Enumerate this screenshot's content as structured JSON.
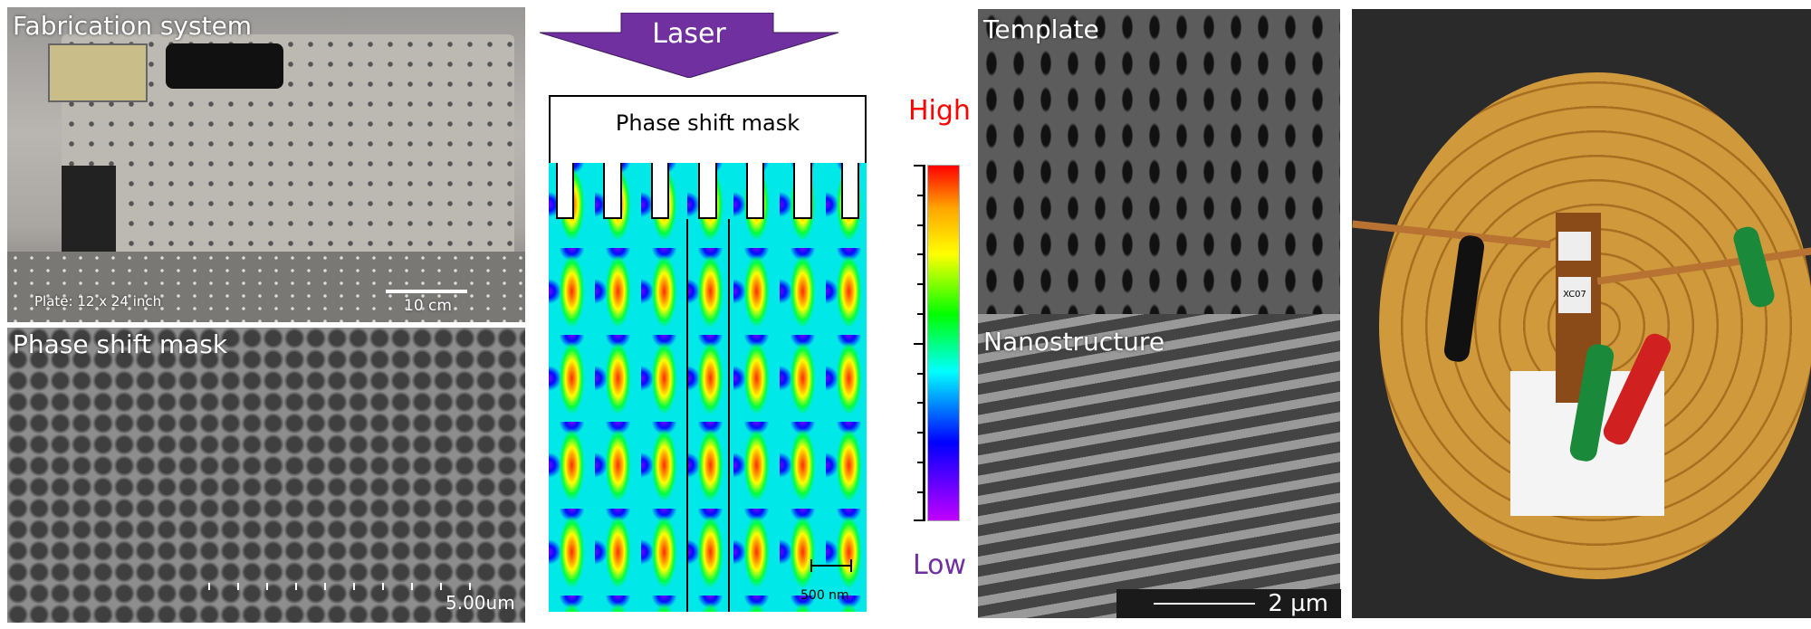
{
  "panel_fabrication": {
    "title": "Fabrication system",
    "plate_label": "Plate: 12 x 24 inch",
    "scale_label": "10 cm"
  },
  "panel_mask_sem": {
    "title": "Phase shift mask",
    "scale_label": "5.00um"
  },
  "panel_simulation": {
    "laser_label": "Laser",
    "mask_label": "Phase shift mask",
    "colorbar_high": "High",
    "colorbar_low": "Low",
    "scale_label": "500 nm",
    "colors": {
      "arrow": "#7030a0",
      "high": "#ff0000",
      "low": "#7030a0"
    }
  },
  "panel_template": {
    "title": "Template"
  },
  "panel_nanostructure": {
    "title": "Nanostructure",
    "scale_label": "2 µm"
  },
  "panel_device": {
    "chip_label": "XC07"
  }
}
